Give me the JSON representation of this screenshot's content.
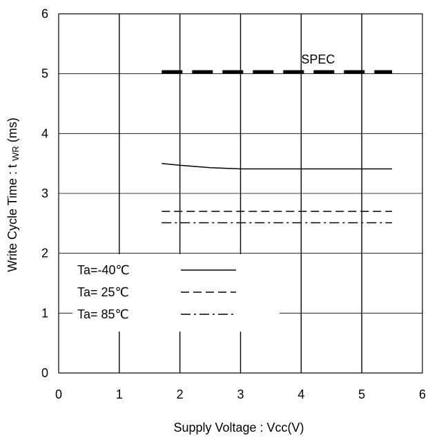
{
  "chart_data": {
    "type": "line",
    "xlabel": "Supply Voltage : Vcc(V)",
    "ylabel_main": "Write Cycle Time : t",
    "ylabel_sub": "WR",
    "ylabel_tail": "(ms)",
    "xlim": [
      0,
      6
    ],
    "ylim": [
      0,
      6
    ],
    "xticks": [
      "0",
      "1",
      "2",
      "3",
      "4",
      "5",
      "6"
    ],
    "yticks": [
      "0",
      "1",
      "2",
      "3",
      "4",
      "5",
      "6"
    ],
    "grid": true,
    "spec": {
      "label": "SPEC",
      "x": [
        1.7,
        5.5
      ],
      "y": 5.03
    },
    "legend": {
      "placement": "lower-left",
      "entries": [
        {
          "text": "Ta=-40℃",
          "style": "solid"
        },
        {
          "text": "Ta= 25℃",
          "style": "dashed"
        },
        {
          "text": "Ta= 85℃",
          "style": "dashdot"
        }
      ]
    },
    "series": [
      {
        "name": "Ta=-40℃",
        "style": "solid",
        "x": [
          1.7,
          2.0,
          2.5,
          3.0,
          3.5,
          4.0,
          4.5,
          5.0,
          5.5
        ],
        "y": [
          3.5,
          3.47,
          3.43,
          3.41,
          3.41,
          3.41,
          3.41,
          3.41,
          3.41
        ]
      },
      {
        "name": "Ta= 25℃",
        "style": "dashed",
        "x": [
          1.7,
          5.5
        ],
        "y": [
          2.7,
          2.7
        ]
      },
      {
        "name": "Ta= 85℃",
        "style": "dashdot",
        "x": [
          1.7,
          5.5
        ],
        "y": [
          2.51,
          2.51
        ]
      }
    ]
  }
}
